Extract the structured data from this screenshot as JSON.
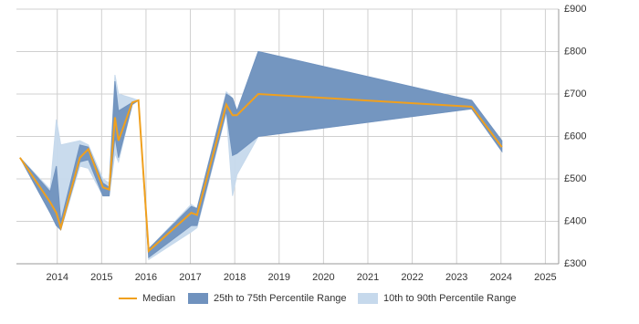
{
  "chart_data": {
    "type": "range-area",
    "x": [
      2013.16,
      2013.84,
      2013.98,
      2014.08,
      2014.51,
      2014.7,
      2015.03,
      2015.17,
      2015.3,
      2015.38,
      2015.69,
      2015.83,
      2016.06,
      2017.02,
      2017.15,
      2017.81,
      2017.95,
      2018.05,
      2018.53,
      2023.34,
      2024.02
    ],
    "series": [
      {
        "name": "10th to 90th Percentile Range",
        "color": "#c6d9ec",
        "low": [
          550,
          420,
          390,
          380,
          530,
          525,
          460,
          460,
          560,
          540,
          675,
          685,
          310,
          375,
          385,
          655,
          460,
          510,
          600,
          665,
          565
        ],
        "high": [
          550,
          475,
          640,
          580,
          590,
          580,
          500,
          490,
          745,
          700,
          690,
          685,
          335,
          440,
          430,
          705,
          690,
          660,
          800,
          685,
          590
        ]
      },
      {
        "name": "25th to 75th Percentile Range",
        "color": "#7092be",
        "low": [
          550,
          420,
          390,
          380,
          540,
          545,
          460,
          460,
          600,
          550,
          675,
          685,
          315,
          390,
          390,
          660,
          555,
          560,
          600,
          665,
          565
        ],
        "high": [
          550,
          470,
          530,
          400,
          580,
          575,
          490,
          480,
          730,
          660,
          680,
          685,
          335,
          435,
          430,
          700,
          690,
          660,
          800,
          685,
          590
        ]
      },
      {
        "name": "Median",
        "color": "#f0a01e",
        "values": [
          550,
          445,
          420,
          385,
          550,
          570,
          480,
          475,
          645,
          590,
          680,
          685,
          330,
          420,
          415,
          675,
          650,
          650,
          700,
          670,
          575
        ]
      }
    ],
    "xlim": [
      2013.08,
      2025.3
    ],
    "xticks": [
      2014,
      2015,
      2016,
      2017,
      2018,
      2019,
      2020,
      2021,
      2022,
      2023,
      2024,
      2025
    ],
    "ylim": [
      300,
      900
    ],
    "yticks": [
      {
        "value": 300,
        "label": "£300"
      },
      {
        "value": 400,
        "label": "£400"
      },
      {
        "value": 500,
        "label": "£500"
      },
      {
        "value": 600,
        "label": "£600"
      },
      {
        "value": 700,
        "label": "£700"
      },
      {
        "value": 800,
        "label": "£800"
      },
      {
        "value": 900,
        "label": "£900"
      }
    ],
    "grid": true,
    "legend": "bottom"
  }
}
